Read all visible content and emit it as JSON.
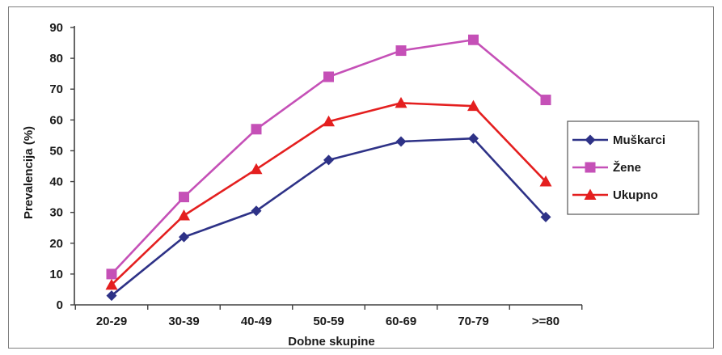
{
  "chart_data": {
    "type": "line",
    "title": "",
    "xlabel": "Dobne skupine",
    "ylabel": "Prevalencija (%)",
    "categories": [
      "20-29",
      "30-39",
      "40-49",
      "50-59",
      "60-69",
      "70-79",
      ">=80"
    ],
    "ylim": [
      0,
      90
    ],
    "yticks": [
      "0",
      "10",
      "20",
      "30",
      "40",
      "50",
      "60",
      "70",
      "80",
      "90"
    ],
    "grid": false,
    "legend_position": "right",
    "series": [
      {
        "name": "Muškarci",
        "values": [
          3,
          22,
          30.5,
          47,
          53,
          54,
          28.5
        ],
        "color": "#2e3287",
        "marker": "diamond"
      },
      {
        "name": "Žene",
        "values": [
          10,
          35,
          57,
          74,
          82.5,
          86,
          66.5
        ],
        "color": "#c550b7",
        "marker": "square"
      },
      {
        "name": "Ukupno",
        "values": [
          6.5,
          29,
          44,
          59.5,
          65.5,
          64.5,
          40
        ],
        "color": "#e41f1f",
        "marker": "triangle"
      }
    ]
  }
}
